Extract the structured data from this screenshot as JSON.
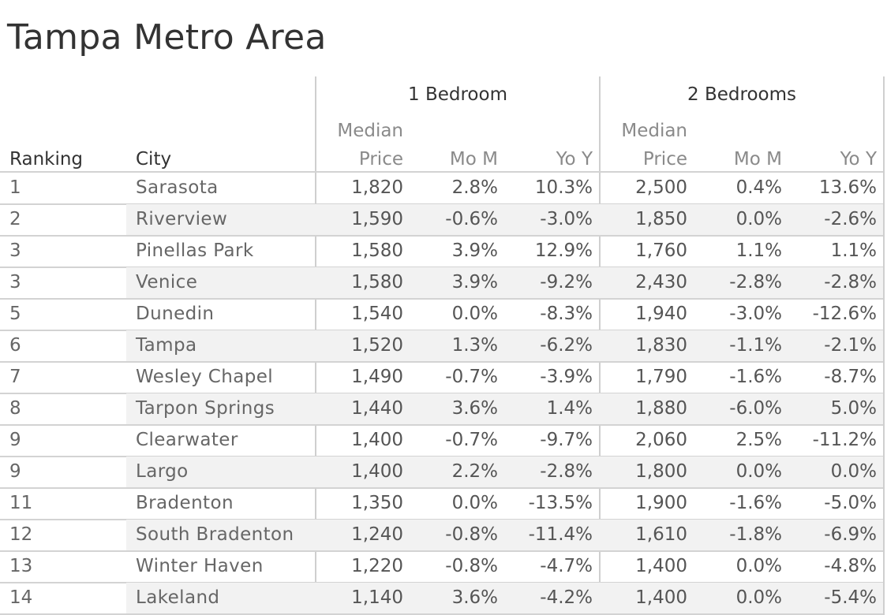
{
  "title": "Tampa Metro Area",
  "chart_data": {
    "type": "table",
    "title": "Tampa Metro Area",
    "groups": [
      "1 Bedroom",
      "2 Bedrooms"
    ],
    "columns": {
      "ranking": "Ranking",
      "city": "City",
      "median_top": "Median",
      "median_bottom": "Price",
      "mom": "Mo M",
      "yoy": "Yo Y"
    },
    "rows": [
      {
        "rank": "1",
        "city": "Sarasota",
        "b1_price": "1,820",
        "b1_mom": "2.8%",
        "b1_yoy": "10.3%",
        "b2_price": "2,500",
        "b2_mom": "0.4%",
        "b2_yoy": "13.6%"
      },
      {
        "rank": "2",
        "city": "Riverview",
        "b1_price": "1,590",
        "b1_mom": "-0.6%",
        "b1_yoy": "-3.0%",
        "b2_price": "1,850",
        "b2_mom": "0.0%",
        "b2_yoy": "-2.6%"
      },
      {
        "rank": "3",
        "city": "Pinellas Park",
        "b1_price": "1,580",
        "b1_mom": "3.9%",
        "b1_yoy": "12.9%",
        "b2_price": "1,760",
        "b2_mom": "1.1%",
        "b2_yoy": "1.1%"
      },
      {
        "rank": "3",
        "city": "Venice",
        "b1_price": "1,580",
        "b1_mom": "3.9%",
        "b1_yoy": "-9.2%",
        "b2_price": "2,430",
        "b2_mom": "-2.8%",
        "b2_yoy": "-2.8%"
      },
      {
        "rank": "5",
        "city": "Dunedin",
        "b1_price": "1,540",
        "b1_mom": "0.0%",
        "b1_yoy": "-8.3%",
        "b2_price": "1,940",
        "b2_mom": "-3.0%",
        "b2_yoy": "-12.6%"
      },
      {
        "rank": "6",
        "city": "Tampa",
        "b1_price": "1,520",
        "b1_mom": "1.3%",
        "b1_yoy": "-6.2%",
        "b2_price": "1,830",
        "b2_mom": "-1.1%",
        "b2_yoy": "-2.1%"
      },
      {
        "rank": "7",
        "city": "Wesley Chapel",
        "b1_price": "1,490",
        "b1_mom": "-0.7%",
        "b1_yoy": "-3.9%",
        "b2_price": "1,790",
        "b2_mom": "-1.6%",
        "b2_yoy": "-8.7%"
      },
      {
        "rank": "8",
        "city": "Tarpon Springs",
        "b1_price": "1,440",
        "b1_mom": "3.6%",
        "b1_yoy": "1.4%",
        "b2_price": "1,880",
        "b2_mom": "-6.0%",
        "b2_yoy": "5.0%"
      },
      {
        "rank": "9",
        "city": "Clearwater",
        "b1_price": "1,400",
        "b1_mom": "-0.7%",
        "b1_yoy": "-9.7%",
        "b2_price": "2,060",
        "b2_mom": "2.5%",
        "b2_yoy": "-11.2%"
      },
      {
        "rank": "9",
        "city": "Largo",
        "b1_price": "1,400",
        "b1_mom": "2.2%",
        "b1_yoy": "-2.8%",
        "b2_price": "1,800",
        "b2_mom": "0.0%",
        "b2_yoy": "0.0%"
      },
      {
        "rank": "11",
        "city": "Bradenton",
        "b1_price": "1,350",
        "b1_mom": "0.0%",
        "b1_yoy": "-13.5%",
        "b2_price": "1,900",
        "b2_mom": "-1.6%",
        "b2_yoy": "-5.0%"
      },
      {
        "rank": "12",
        "city": "South Bradenton",
        "b1_price": "1,240",
        "b1_mom": "-0.8%",
        "b1_yoy": "-11.4%",
        "b2_price": "1,610",
        "b2_mom": "-1.8%",
        "b2_yoy": "-6.9%"
      },
      {
        "rank": "13",
        "city": "Winter Haven",
        "b1_price": "1,220",
        "b1_mom": "-0.8%",
        "b1_yoy": "-4.7%",
        "b2_price": "1,400",
        "b2_mom": "0.0%",
        "b2_yoy": "-4.8%"
      },
      {
        "rank": "14",
        "city": "Lakeland",
        "b1_price": "1,140",
        "b1_mom": "3.6%",
        "b1_yoy": "-4.2%",
        "b2_price": "1,400",
        "b2_mom": "0.0%",
        "b2_yoy": "-5.4%"
      }
    ]
  },
  "colors": {
    "text": "#333333",
    "muted": "#8a8a8a",
    "band": "#f2f2f2",
    "rule": "#d3d3d3"
  }
}
